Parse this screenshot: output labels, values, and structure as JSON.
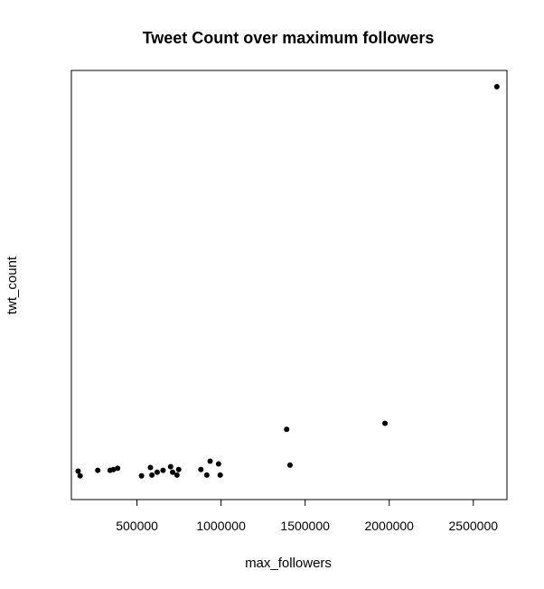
{
  "chart_data": {
    "type": "scatter",
    "title": "Tweet Count over maximum followers",
    "xlabel": "max_followers",
    "ylabel": "twt_count",
    "xlim": [
      110000,
      2700000
    ],
    "ylim": [
      0,
      100
    ],
    "x_ticks": [
      500000,
      1000000,
      1500000,
      2000000,
      2500000
    ],
    "x_tick_labels": [
      "500000",
      "1000000",
      "1500000",
      "2000000",
      "2500000"
    ],
    "y_ticks_shown": false,
    "grid": false,
    "legend": "none",
    "point_color": "#000000",
    "series": [
      {
        "points": [
          {
            "x": 150000,
            "y": 3.3
          },
          {
            "x": 162000,
            "y": 2.1
          },
          {
            "x": 267000,
            "y": 3.5
          },
          {
            "x": 340000,
            "y": 3.5
          },
          {
            "x": 360000,
            "y": 3.7
          },
          {
            "x": 385000,
            "y": 4.0
          },
          {
            "x": 527000,
            "y": 2.1
          },
          {
            "x": 580000,
            "y": 4.2
          },
          {
            "x": 589000,
            "y": 2.3
          },
          {
            "x": 620000,
            "y": 3.0
          },
          {
            "x": 655000,
            "y": 3.5
          },
          {
            "x": 700000,
            "y": 4.4
          },
          {
            "x": 712000,
            "y": 3.0
          },
          {
            "x": 738000,
            "y": 2.3
          },
          {
            "x": 748000,
            "y": 3.7
          },
          {
            "x": 880000,
            "y": 3.7
          },
          {
            "x": 915000,
            "y": 2.3
          },
          {
            "x": 935000,
            "y": 5.8
          },
          {
            "x": 985000,
            "y": 5.1
          },
          {
            "x": 995000,
            "y": 2.3
          },
          {
            "x": 1390000,
            "y": 13.8
          },
          {
            "x": 1410000,
            "y": 4.8
          },
          {
            "x": 1975000,
            "y": 15.3
          },
          {
            "x": 2640000,
            "y": 100
          }
        ]
      }
    ]
  }
}
